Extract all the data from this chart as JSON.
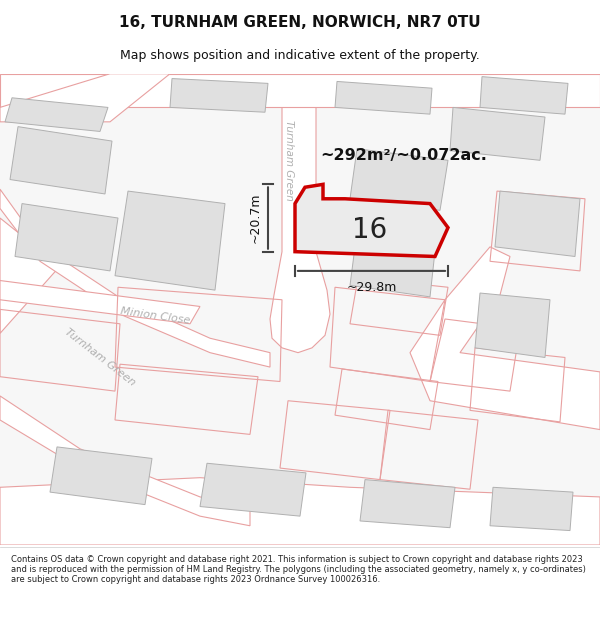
{
  "title": "16, TURNHAM GREEN, NORWICH, NR7 0TU",
  "subtitle": "Map shows position and indicative extent of the property.",
  "footer": "Contains OS data © Crown copyright and database right 2021. This information is subject to Crown copyright and database rights 2023 and is reproduced with the permission of HM Land Registry. The polygons (including the associated geometry, namely x, y co-ordinates) are subject to Crown copyright and database rights 2023 Ordnance Survey 100026316.",
  "area_label": "~292m²/~0.072ac.",
  "width_label": "~29.8m",
  "height_label": "~20.7m",
  "plot_number": "16",
  "map_bg": "#f7f7f7",
  "building_color": "#e0e0e0",
  "building_edge": "#b0b0b0",
  "road_fill": "#ffffff",
  "road_edge": "#e8a0a0",
  "plot_fill": "#ebebeb",
  "plot_edge": "#cc0000",
  "dim_color": "#444444",
  "street_label_color": "#b0b0b0"
}
